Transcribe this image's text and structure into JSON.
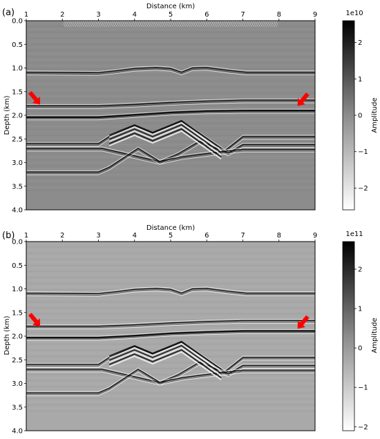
{
  "chart_data": [
    {
      "type": "heatmap",
      "panel_label": "(a)",
      "title": "",
      "xlabel": "Distance (km)",
      "ylabel": "Depth (km)",
      "x_axis_position": "top",
      "xlim": [
        1,
        9
      ],
      "ylim": [
        0.0,
        4.0
      ],
      "y_inverted": true,
      "xticks": [
        "1",
        "2",
        "3",
        "4",
        "5",
        "6",
        "7",
        "8",
        "9"
      ],
      "yticks": [
        "0.0",
        "0.5",
        "1.0",
        "1.5",
        "2.0",
        "2.5",
        "3.0",
        "3.5",
        "4.0"
      ],
      "colorbar": {
        "label": "Amplitude",
        "multiplier": "1e10",
        "range": [
          -2.6,
          2.6
        ],
        "ticks": [
          "2",
          "1",
          "0",
          "−1",
          "−2"
        ],
        "colormap": "gray_r"
      },
      "background_color": "#8c8c8c",
      "arrows": [
        {
          "x": 1.25,
          "y": 1.65,
          "color": "#ff0000"
        },
        {
          "x": 8.65,
          "y": 1.68,
          "color": "#ff0000"
        }
      ],
      "reflectors": [
        {
          "name": "",
          "points": [
            [
              1,
              1.09
            ],
            [
              3,
              1.1
            ],
            [
              3.5,
              1.06
            ],
            [
              4,
              1.01
            ],
            [
              4.6,
              0.99
            ],
            [
              5.0,
              1.01
            ],
            [
              5.3,
              1.09
            ],
            [
              5.6,
              1.0
            ],
            [
              6.0,
              0.99
            ],
            [
              6.6,
              1.05
            ],
            [
              7.1,
              1.09
            ],
            [
              9,
              1.09
            ]
          ]
        },
        {
          "name": "",
          "points": [
            [
              1,
              1.8
            ],
            [
              3,
              1.8
            ],
            [
              4,
              1.77
            ],
            [
              5,
              1.73
            ],
            [
              6,
              1.7
            ],
            [
              7,
              1.68
            ],
            [
              9,
              1.68
            ]
          ]
        },
        {
          "name": "",
          "points": [
            [
              1,
              2.04
            ],
            [
              3,
              2.04
            ],
            [
              4,
              1.99
            ],
            [
              5,
              1.94
            ],
            [
              6,
              1.91
            ],
            [
              7,
              1.9
            ],
            [
              9,
              1.9
            ]
          ]
        },
        {
          "name": "",
          "points": [
            [
              1,
              2.6
            ],
            [
              3,
              2.6
            ],
            [
              3.3,
              2.45
            ],
            [
              4.0,
              2.22
            ],
            [
              4.5,
              2.38
            ],
            [
              5.3,
              2.13
            ],
            [
              6.5,
              2.75
            ],
            [
              7.0,
              2.45
            ],
            [
              9,
              2.45
            ]
          ]
        },
        {
          "name": "",
          "points": [
            [
              1,
              2.7
            ],
            [
              3.1,
              2.7
            ],
            [
              4.7,
              2.98
            ],
            [
              5.2,
              2.82
            ],
            [
              5.8,
              2.55
            ],
            [
              6.6,
              2.8
            ],
            [
              7.0,
              2.62
            ],
            [
              9,
              2.62
            ]
          ]
        },
        {
          "name": "",
          "points": [
            [
              1,
              3.2
            ],
            [
              3.0,
              3.2
            ],
            [
              3.3,
              3.1
            ],
            [
              4.1,
              2.7
            ],
            [
              4.7,
              2.98
            ],
            [
              5.3,
              2.88
            ],
            [
              6.1,
              2.8
            ],
            [
              7.0,
              2.72
            ],
            [
              9,
              2.72
            ]
          ]
        }
      ]
    },
    {
      "type": "heatmap",
      "panel_label": "(b)",
      "title": "",
      "xlabel": "Distance (km)",
      "ylabel": "Depth (km)",
      "x_axis_position": "top",
      "xlim": [
        1,
        9
      ],
      "ylim": [
        0.0,
        4.0
      ],
      "y_inverted": true,
      "xticks": [
        "1",
        "2",
        "3",
        "4",
        "5",
        "6",
        "7",
        "8",
        "9"
      ],
      "yticks": [
        "0.0",
        "0.5",
        "1.0",
        "1.5",
        "2.0",
        "2.5",
        "3.0",
        "3.5",
        "4.0"
      ],
      "colorbar": {
        "label": "Amplitude",
        "multiplier": "1e11",
        "range": [
          -2.1,
          2.7
        ],
        "ticks": [
          "2",
          "1",
          "0",
          "−1",
          "−2"
        ],
        "colormap": "gray_r"
      },
      "background_color": "#a9a9a9",
      "arrows": [
        {
          "x": 1.25,
          "y": 1.67,
          "color": "#ff0000"
        },
        {
          "x": 8.65,
          "y": 1.72,
          "color": "#ff0000"
        }
      ],
      "reflectors": [
        {
          "name": "",
          "points": [
            [
              1,
              1.09
            ],
            [
              3,
              1.1
            ],
            [
              3.5,
              1.06
            ],
            [
              4,
              1.01
            ],
            [
              4.6,
              0.99
            ],
            [
              5.0,
              1.01
            ],
            [
              5.3,
              1.09
            ],
            [
              5.6,
              1.0
            ],
            [
              6.0,
              0.99
            ],
            [
              6.6,
              1.05
            ],
            [
              7.1,
              1.09
            ],
            [
              9,
              1.09
            ]
          ]
        },
        {
          "name": "",
          "points": [
            [
              1,
              1.79
            ],
            [
              3,
              1.79
            ],
            [
              4,
              1.76
            ],
            [
              5,
              1.72
            ],
            [
              6,
              1.69
            ],
            [
              7,
              1.67
            ],
            [
              9,
              1.67
            ]
          ]
        },
        {
          "name": "",
          "points": [
            [
              1,
              2.03
            ],
            [
              3,
              2.03
            ],
            [
              4,
              1.99
            ],
            [
              5,
              1.94
            ],
            [
              6,
              1.91
            ],
            [
              7,
              1.89
            ],
            [
              9,
              1.89
            ]
          ]
        },
        {
          "name": "",
          "points": [
            [
              1,
              2.6
            ],
            [
              3,
              2.6
            ],
            [
              3.3,
              2.45
            ],
            [
              4.0,
              2.22
            ],
            [
              4.5,
              2.38
            ],
            [
              5.3,
              2.13
            ],
            [
              6.5,
              2.75
            ],
            [
              7.0,
              2.45
            ],
            [
              9,
              2.45
            ]
          ]
        },
        {
          "name": "",
          "points": [
            [
              1,
              2.7
            ],
            [
              3.1,
              2.7
            ],
            [
              4.7,
              2.98
            ],
            [
              5.2,
              2.82
            ],
            [
              5.8,
              2.55
            ],
            [
              6.6,
              2.8
            ],
            [
              7.0,
              2.62
            ],
            [
              9,
              2.62
            ]
          ]
        },
        {
          "name": "",
          "points": [
            [
              1,
              3.2
            ],
            [
              3.0,
              3.2
            ],
            [
              3.3,
              3.1
            ],
            [
              4.1,
              2.7
            ],
            [
              4.7,
              2.98
            ],
            [
              5.3,
              2.88
            ],
            [
              6.1,
              2.8
            ],
            [
              7.0,
              2.72
            ],
            [
              9,
              2.72
            ]
          ]
        }
      ]
    }
  ]
}
